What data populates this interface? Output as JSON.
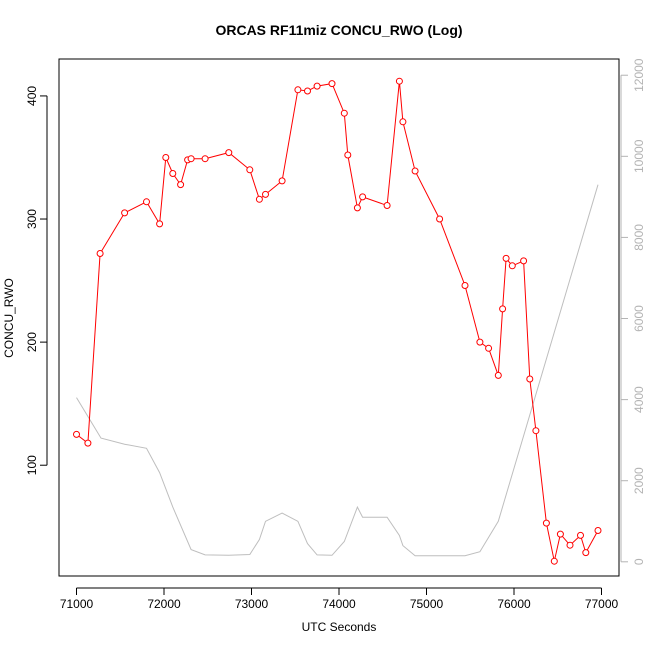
{
  "chart_data": {
    "type": "line",
    "title": "ORCAS RF11miz CONCU_RWO (Log)",
    "xlabel": "UTC Seconds",
    "ylabel": "CONCU_RWO",
    "xlim": [
      70800,
      77200
    ],
    "ylim": [
      10,
      430
    ],
    "y2lim": [
      -350,
      12400
    ],
    "x_ticks": [
      71000,
      72000,
      73000,
      74000,
      75000,
      76000,
      77000
    ],
    "y_ticks": [
      100,
      200,
      300,
      400
    ],
    "y2_ticks": [
      0,
      2000,
      4000,
      6000,
      8000,
      10000,
      12000
    ],
    "grid": false,
    "legend": "none",
    "colors": {
      "primary": "#ff0000",
      "secondary": "#bebebe",
      "right_axis": "#b3b3b3"
    },
    "series": [
      {
        "axis": "left",
        "style": "line-with-circles",
        "color": "#ff0000",
        "x": [
          71000,
          71130,
          71270,
          71550,
          71800,
          71950,
          72020,
          72100,
          72190,
          72270,
          72310,
          72470,
          72740,
          72980,
          73090,
          73160,
          73350,
          73530,
          73640,
          73750,
          73920,
          74060,
          74100,
          74210,
          74270,
          74550,
          74690,
          74730,
          74870,
          75150,
          75440,
          75610,
          75710,
          75820,
          75870,
          75910,
          75980,
          76110,
          76180,
          76250,
          76370,
          76460,
          76530,
          76640,
          76760,
          76820,
          76960
        ],
        "y": [
          125,
          118,
          272,
          305,
          314,
          296,
          350,
          337,
          328,
          348,
          349,
          349,
          354,
          340,
          316,
          320,
          331,
          405,
          404,
          408,
          410,
          386,
          352,
          309,
          318,
          311,
          412,
          379,
          339,
          300,
          246,
          200,
          195,
          173,
          227,
          268,
          262,
          266,
          170,
          128,
          53,
          22,
          44,
          35,
          43,
          29,
          47
        ]
      },
      {
        "axis": "right",
        "style": "line",
        "color": "#bebebe",
        "x": [
          71000,
          71280,
          71550,
          71800,
          71950,
          72100,
          72310,
          72470,
          72740,
          72980,
          73090,
          73160,
          73350,
          73530,
          73640,
          73750,
          73920,
          74060,
          74210,
          74270,
          74550,
          74690,
          74730,
          74870,
          75150,
          75440,
          75610,
          75820,
          76960
        ],
        "y": [
          4050,
          3050,
          2900,
          2800,
          2200,
          1350,
          300,
          170,
          160,
          180,
          550,
          1000,
          1200,
          1000,
          450,
          170,
          160,
          500,
          1350,
          1100,
          1100,
          650,
          400,
          150,
          150,
          150,
          250,
          1000,
          9300
        ]
      }
    ]
  }
}
